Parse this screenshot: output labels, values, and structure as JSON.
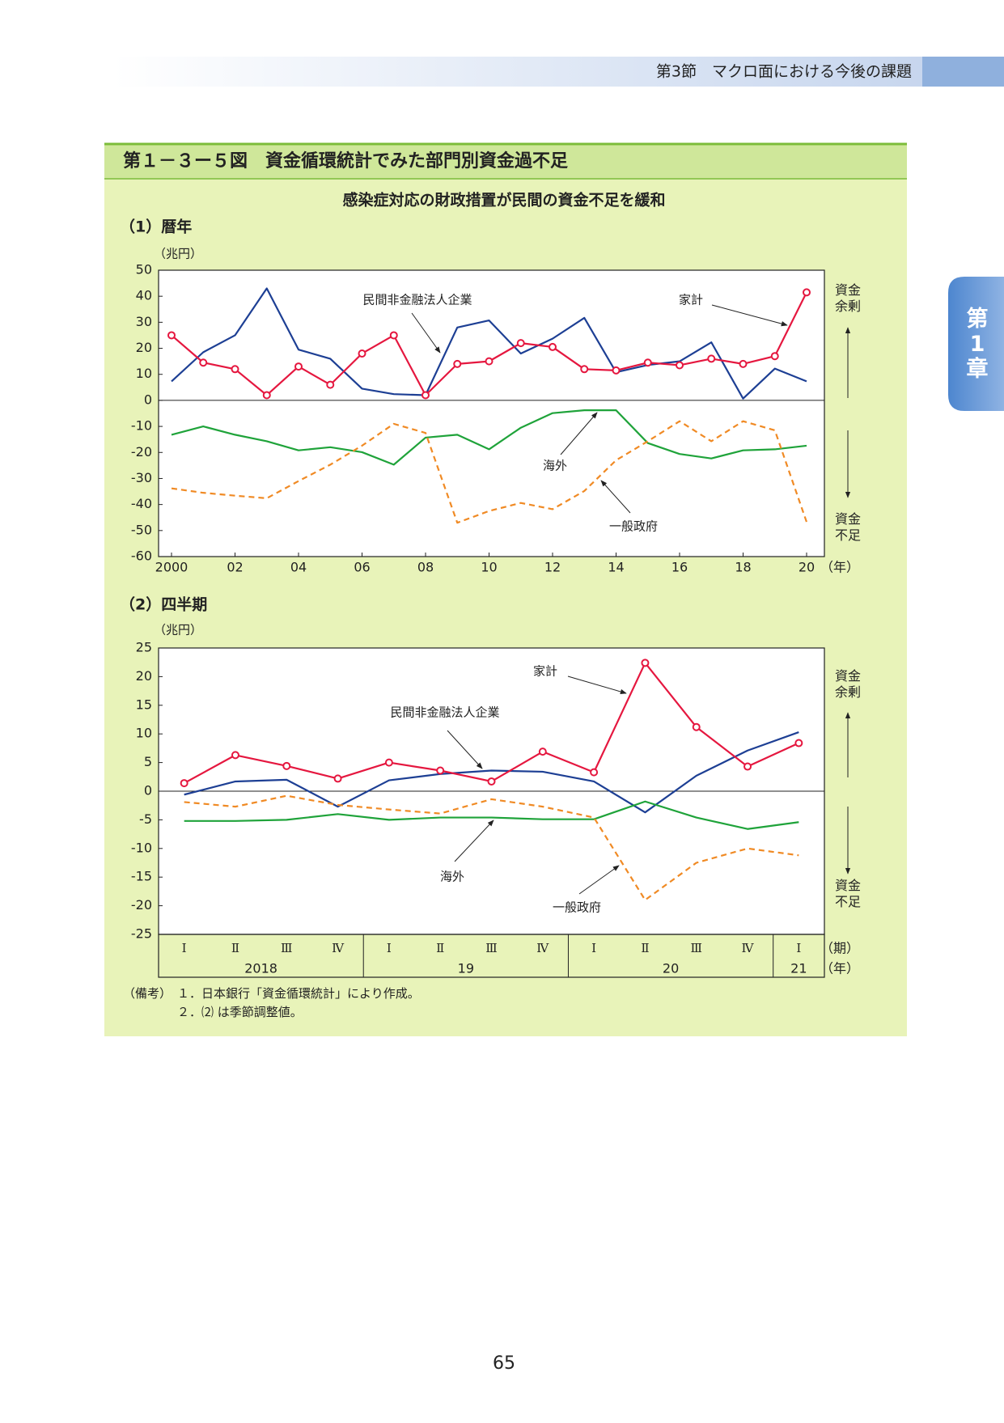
{
  "header": {
    "section": "第3節　マクロ面における今後の課題",
    "tab": "第1章"
  },
  "figure": {
    "title": "第１－３ー５図　資金循環統計でみた部門別資金過不足",
    "subtitle": "感染症対応の財政措置が民間の資金不足を緩和"
  },
  "chart_data": [
    {
      "type": "line",
      "title": "（1）暦年",
      "y_unit": "（兆円）",
      "x_unit": "（年）",
      "side_labels": [
        "資金余剰",
        "資金不足"
      ],
      "x": [
        2000,
        2001,
        2002,
        2003,
        2004,
        2005,
        2006,
        2007,
        2008,
        2009,
        2010,
        2011,
        2012,
        2013,
        2014,
        2015,
        2016,
        2017,
        2018,
        2019,
        2020
      ],
      "xlim": [
        2000,
        2020
      ],
      "xticks": [
        2000,
        {
          "value": 2002,
          "label": "02"
        },
        {
          "value": 2004,
          "label": "04"
        },
        {
          "value": 2006,
          "label": "06"
        },
        {
          "value": 2008,
          "label": "08"
        },
        {
          "value": 2010,
          "label": "10"
        },
        {
          "value": 2012,
          "label": "12"
        },
        {
          "value": 2014,
          "label": "14"
        },
        {
          "value": 2016,
          "label": "16"
        },
        {
          "value": 2018,
          "label": "18"
        },
        {
          "value": 2020,
          "label": "20"
        }
      ],
      "ylim": [
        -60,
        50
      ],
      "yticks": [
        -60,
        -50,
        -40,
        -30,
        -20,
        -10,
        0,
        10,
        20,
        30,
        40,
        50
      ],
      "series": [
        {
          "name": "民間非金融法人企業",
          "color": "#1d3f94",
          "style": "solid",
          "values": [
            7.3,
            18.5,
            25,
            43,
            19.5,
            16,
            4.5,
            2.4,
            2,
            28,
            30.7,
            18,
            23.7,
            31.7,
            10.8,
            13.6,
            15,
            22.3,
            0.7,
            12.2,
            7.3
          ]
        },
        {
          "name": "家計",
          "color": "#e5173f",
          "style": "solid",
          "marker": "circle",
          "values": [
            25,
            14.5,
            12,
            2,
            13,
            6,
            18,
            25,
            2,
            14,
            15,
            22,
            20.5,
            12,
            11.5,
            14.5,
            13.5,
            16,
            14,
            17,
            41.5
          ]
        },
        {
          "name": "海外",
          "color": "#1fa33a",
          "style": "solid",
          "values": [
            -13.2,
            -10,
            -13.2,
            -15.7,
            -19.2,
            -18,
            -19.9,
            -24.7,
            -14.3,
            -13.2,
            -18.8,
            -10.5,
            -4.9,
            -3.8,
            -3.8,
            -16.4,
            -20.6,
            -22.3,
            -19.2,
            -18.8,
            -17.4
          ]
        },
        {
          "name": "一般政府",
          "color": "#f08a24",
          "style": "dashed",
          "values": [
            -33.8,
            -35.5,
            -36.6,
            -37.6,
            -31,
            -24.7,
            -17.4,
            -9,
            -12.5,
            -47,
            -42.5,
            -39.4,
            -41.8,
            -34.8,
            -23,
            -15.7,
            -8,
            -15.7,
            -8,
            -11.5,
            -46.7
          ]
        }
      ]
    },
    {
      "type": "line",
      "title": "（2）四半期",
      "y_unit": "（兆円）",
      "x_unit": "（期）",
      "group_unit": "（年）",
      "side_labels": [
        "資金余剰",
        "資金不足"
      ],
      "categories": [
        "Ⅰ",
        "Ⅱ",
        "Ⅲ",
        "Ⅳ",
        "Ⅰ",
        "Ⅱ",
        "Ⅲ",
        "Ⅳ",
        "Ⅰ",
        "Ⅱ",
        "Ⅲ",
        "Ⅳ",
        "Ⅰ"
      ],
      "groups": [
        {
          "label": "2018",
          "count": 4
        },
        {
          "label": "19",
          "count": 4
        },
        {
          "label": "20",
          "count": 4
        },
        {
          "label": "21",
          "count": 1
        }
      ],
      "ylim": [
        -25,
        25
      ],
      "yticks": [
        -25,
        -20,
        -15,
        -10,
        -5,
        0,
        5,
        10,
        15,
        20,
        25
      ],
      "series": [
        {
          "name": "民間非金融法人企業",
          "color": "#1d3f94",
          "style": "solid",
          "values": [
            -0.6,
            1.7,
            2,
            -2.7,
            1.9,
            3,
            3.6,
            3.4,
            1.7,
            -3.7,
            2.7,
            7.1,
            10.3
          ]
        },
        {
          "name": "家計",
          "color": "#e5173f",
          "style": "solid",
          "marker": "circle",
          "values": [
            1.4,
            6.3,
            4.4,
            2.2,
            5,
            3.6,
            1.7,
            6.9,
            3.3,
            22.4,
            11.2,
            4.3,
            8.4
          ]
        },
        {
          "name": "海外",
          "color": "#1fa33a",
          "style": "solid",
          "values": [
            -5.2,
            -5.2,
            -5,
            -4,
            -5,
            -4.6,
            -4.6,
            -4.9,
            -4.9,
            -1.8,
            -4.6,
            -6.6,
            -5.4
          ]
        },
        {
          "name": "一般政府",
          "color": "#f08a24",
          "style": "dashed",
          "values": [
            -1.9,
            -2.7,
            -0.8,
            -2.4,
            -3.2,
            -3.9,
            -1.4,
            -2.7,
            -4.6,
            -19,
            -12.5,
            -10,
            -11.2
          ]
        }
      ]
    }
  ],
  "notes": {
    "label": "（備考）",
    "items": [
      "１．日本銀行「資金循環統計」により作成。",
      "２．⑵ は季節調整値。"
    ]
  },
  "page_number": "65"
}
